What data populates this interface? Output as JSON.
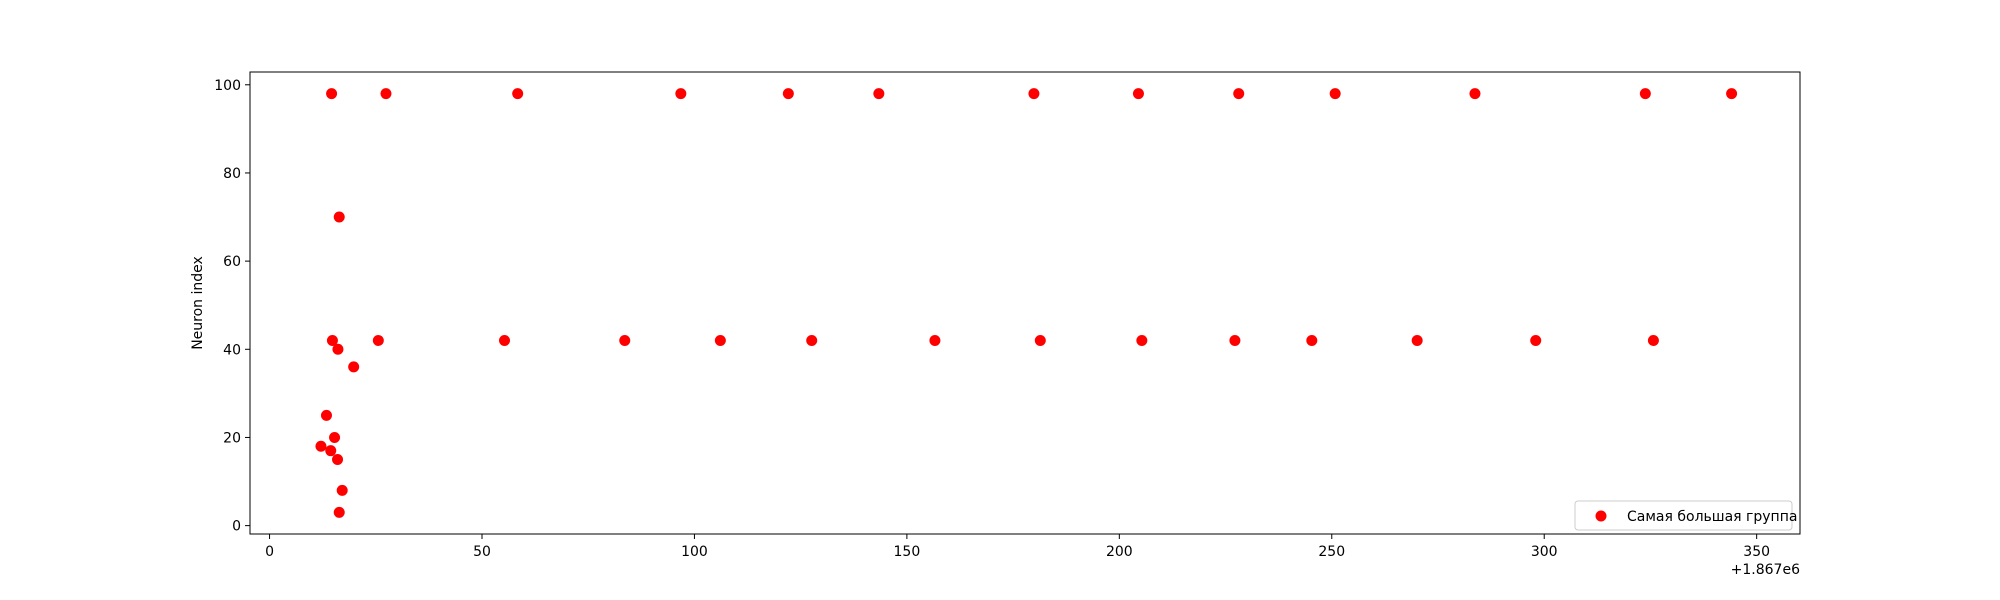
{
  "chart_data": {
    "type": "scatter",
    "title": "",
    "xlabel": "",
    "ylabel": "Neuron index",
    "x_offset_label": "+1.867e6",
    "xlim": [
      -4.6,
      360.2
    ],
    "ylim": [
      -1.9,
      102.9
    ],
    "xticks": [
      0,
      50,
      100,
      150,
      200,
      250,
      300,
      350
    ],
    "xtick_labels": [
      "0",
      "50",
      "100",
      "150",
      "200",
      "250",
      "300",
      "350"
    ],
    "yticks": [
      0,
      20,
      40,
      60,
      80,
      100
    ],
    "ytick_labels": [
      "0",
      "20",
      "40",
      "60",
      "80",
      "100"
    ],
    "grid": false,
    "legend_position": "lower-right",
    "series": [
      {
        "name": "Самая большая группа",
        "color": "#ff0000",
        "points": [
          [
            12.1,
            18
          ],
          [
            13.4,
            25
          ],
          [
            14.4,
            17
          ],
          [
            14.6,
            98
          ],
          [
            14.8,
            42
          ],
          [
            15.3,
            20
          ],
          [
            16.0,
            15
          ],
          [
            16.1,
            40
          ],
          [
            16.4,
            70
          ],
          [
            16.4,
            3
          ],
          [
            17.1,
            8
          ],
          [
            19.8,
            36
          ],
          [
            25.6,
            42
          ],
          [
            27.4,
            98
          ],
          [
            55.3,
            42
          ],
          [
            58.4,
            98
          ],
          [
            83.6,
            42
          ],
          [
            96.8,
            98
          ],
          [
            106.1,
            42
          ],
          [
            122.1,
            98
          ],
          [
            127.6,
            42
          ],
          [
            143.4,
            98
          ],
          [
            156.6,
            42
          ],
          [
            179.9,
            98
          ],
          [
            181.4,
            42
          ],
          [
            204.5,
            98
          ],
          [
            205.3,
            42
          ],
          [
            227.2,
            42
          ],
          [
            228.1,
            98
          ],
          [
            245.3,
            42
          ],
          [
            250.8,
            98
          ],
          [
            270.1,
            42
          ],
          [
            283.7,
            98
          ],
          [
            298.0,
            42
          ],
          [
            323.8,
            98
          ],
          [
            325.7,
            42
          ],
          [
            344.1,
            98
          ]
        ]
      }
    ]
  }
}
